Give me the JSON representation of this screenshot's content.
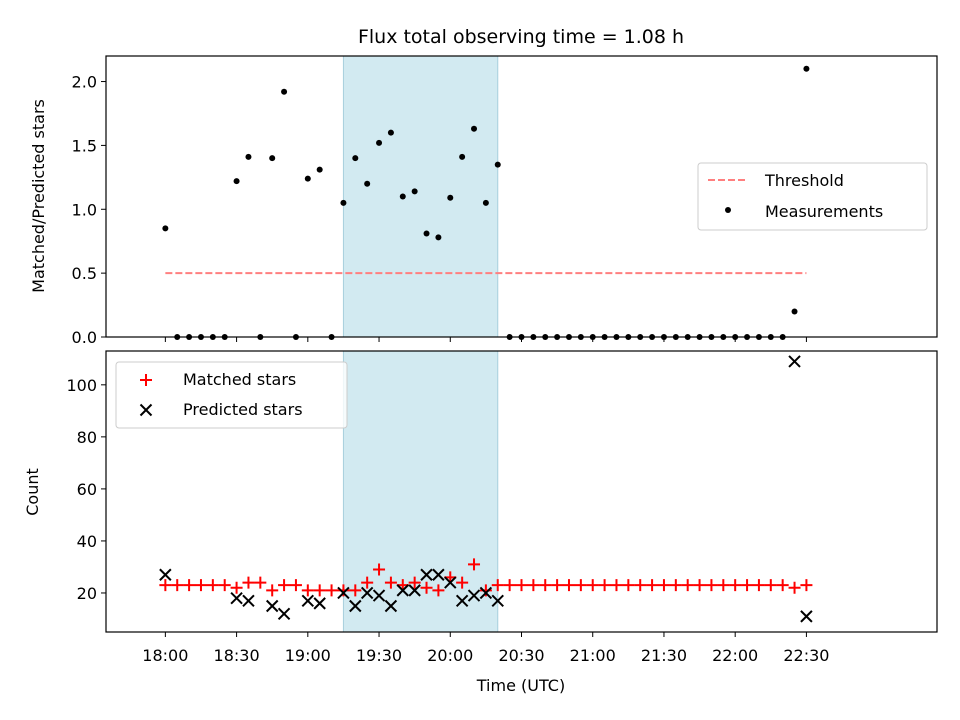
{
  "chart_data": [
    {
      "type": "scatter",
      "title": "Flux total observing time = 1.08 h",
      "xlabel": "",
      "ylabel": "Matched/Predicted stars",
      "xlim_minutes": [
        -25,
        325
      ],
      "ylim": [
        0,
        2.2
      ],
      "yticks": [
        0.0,
        0.5,
        1.0,
        1.5,
        2.0
      ],
      "ytick_labels": [
        "0.0",
        "0.5",
        "1.0",
        "1.5",
        "2.0"
      ],
      "shaded_span": [
        "19:15",
        "20:20"
      ],
      "shaded_color": "#add8e6",
      "legend": {
        "placement": "center-right",
        "entries": [
          "Threshold",
          "Measurements"
        ]
      },
      "series": [
        {
          "name": "Threshold",
          "style": "dashed-line",
          "color": "#ff7f7f",
          "x": [
            "18:00",
            "22:30"
          ],
          "y": [
            0.5,
            0.5
          ]
        },
        {
          "name": "Measurements",
          "style": "dot",
          "color": "#000000",
          "points": [
            [
              "18:00",
              0.85
            ],
            [
              "18:05",
              0.0
            ],
            [
              "18:10",
              0.0
            ],
            [
              "18:15",
              0.0
            ],
            [
              "18:20",
              0.0
            ],
            [
              "18:25",
              0.0
            ],
            [
              "18:30",
              1.22
            ],
            [
              "18:35",
              1.41
            ],
            [
              "18:40",
              0.0
            ],
            [
              "18:45",
              1.4
            ],
            [
              "18:50",
              1.92
            ],
            [
              "18:55",
              0.0
            ],
            [
              "19:00",
              1.24
            ],
            [
              "19:05",
              1.31
            ],
            [
              "19:10",
              0.0
            ],
            [
              "19:15",
              1.05
            ],
            [
              "19:20",
              1.4
            ],
            [
              "19:25",
              1.2
            ],
            [
              "19:30",
              1.52
            ],
            [
              "19:35",
              1.6
            ],
            [
              "19:40",
              1.1
            ],
            [
              "19:45",
              1.14
            ],
            [
              "19:50",
              0.81
            ],
            [
              "19:55",
              0.78
            ],
            [
              "20:00",
              1.09
            ],
            [
              "20:05",
              1.41
            ],
            [
              "20:10",
              1.63
            ],
            [
              "20:15",
              1.05
            ],
            [
              "20:20",
              1.35
            ],
            [
              "20:25",
              0.0
            ],
            [
              "20:30",
              0.0
            ],
            [
              "20:35",
              0.0
            ],
            [
              "20:40",
              0.0
            ],
            [
              "20:45",
              0.0
            ],
            [
              "20:50",
              0.0
            ],
            [
              "20:55",
              0.0
            ],
            [
              "21:00",
              0.0
            ],
            [
              "21:05",
              0.0
            ],
            [
              "21:10",
              0.0
            ],
            [
              "21:15",
              0.0
            ],
            [
              "21:20",
              0.0
            ],
            [
              "21:25",
              0.0
            ],
            [
              "21:30",
              0.0
            ],
            [
              "21:35",
              0.0
            ],
            [
              "21:40",
              0.0
            ],
            [
              "21:45",
              0.0
            ],
            [
              "21:50",
              0.0
            ],
            [
              "21:55",
              0.0
            ],
            [
              "22:00",
              0.0
            ],
            [
              "22:05",
              0.0
            ],
            [
              "22:10",
              0.0
            ],
            [
              "22:15",
              0.0
            ],
            [
              "22:20",
              0.0
            ],
            [
              "22:25",
              0.2
            ],
            [
              "22:30",
              2.1
            ]
          ]
        }
      ]
    },
    {
      "type": "scatter",
      "title": "",
      "xlabel": "Time (UTC)",
      "ylabel": "Count",
      "xlim_minutes": [
        -25,
        325
      ],
      "ylim": [
        5,
        113
      ],
      "xticks": [
        "18:00",
        "18:30",
        "19:00",
        "19:30",
        "20:00",
        "20:30",
        "21:00",
        "21:30",
        "22:00",
        "22:30"
      ],
      "yticks": [
        20,
        40,
        60,
        80,
        100
      ],
      "ytick_labels": [
        "20",
        "40",
        "60",
        "80",
        "100"
      ],
      "shaded_span": [
        "19:15",
        "20:20"
      ],
      "shaded_color": "#add8e6",
      "legend": {
        "placement": "upper-left",
        "entries": [
          "Matched stars",
          "Predicted stars"
        ]
      },
      "series": [
        {
          "name": "Matched stars",
          "marker": "plus",
          "color": "#ff0000",
          "points": [
            [
              "18:00",
              23
            ],
            [
              "18:05",
              23
            ],
            [
              "18:10",
              23
            ],
            [
              "18:15",
              23
            ],
            [
              "18:20",
              23
            ],
            [
              "18:25",
              23
            ],
            [
              "18:30",
              22
            ],
            [
              "18:35",
              24
            ],
            [
              "18:40",
              24
            ],
            [
              "18:45",
              21
            ],
            [
              "18:50",
              23
            ],
            [
              "18:55",
              23
            ],
            [
              "19:00",
              21
            ],
            [
              "19:05",
              21
            ],
            [
              "19:10",
              21
            ],
            [
              "19:15",
              21
            ],
            [
              "19:20",
              21
            ],
            [
              "19:25",
              24
            ],
            [
              "19:30",
              29
            ],
            [
              "19:35",
              24
            ],
            [
              "19:40",
              23
            ],
            [
              "19:45",
              24
            ],
            [
              "19:50",
              22
            ],
            [
              "19:55",
              21
            ],
            [
              "20:00",
              26
            ],
            [
              "20:05",
              24
            ],
            [
              "20:10",
              31
            ],
            [
              "20:15",
              21
            ],
            [
              "20:20",
              23
            ],
            [
              "20:25",
              23
            ],
            [
              "20:30",
              23
            ],
            [
              "20:35",
              23
            ],
            [
              "20:40",
              23
            ],
            [
              "20:45",
              23
            ],
            [
              "20:50",
              23
            ],
            [
              "20:55",
              23
            ],
            [
              "21:00",
              23
            ],
            [
              "21:05",
              23
            ],
            [
              "21:10",
              23
            ],
            [
              "21:15",
              23
            ],
            [
              "21:20",
              23
            ],
            [
              "21:25",
              23
            ],
            [
              "21:30",
              23
            ],
            [
              "21:35",
              23
            ],
            [
              "21:40",
              23
            ],
            [
              "21:45",
              23
            ],
            [
              "21:50",
              23
            ],
            [
              "21:55",
              23
            ],
            [
              "22:00",
              23
            ],
            [
              "22:05",
              23
            ],
            [
              "22:10",
              23
            ],
            [
              "22:15",
              23
            ],
            [
              "22:20",
              23
            ],
            [
              "22:25",
              22
            ],
            [
              "22:30",
              23
            ]
          ]
        },
        {
          "name": "Predicted stars",
          "marker": "x",
          "color": "#000000",
          "points": [
            [
              "18:00",
              27
            ],
            [
              "18:30",
              18
            ],
            [
              "18:35",
              17
            ],
            [
              "18:45",
              15
            ],
            [
              "18:50",
              12
            ],
            [
              "19:00",
              17
            ],
            [
              "19:05",
              16
            ],
            [
              "19:15",
              20
            ],
            [
              "19:20",
              15
            ],
            [
              "19:25",
              20
            ],
            [
              "19:30",
              19
            ],
            [
              "19:35",
              15
            ],
            [
              "19:40",
              21
            ],
            [
              "19:45",
              21
            ],
            [
              "19:50",
              27
            ],
            [
              "19:55",
              27
            ],
            [
              "20:00",
              24
            ],
            [
              "20:05",
              17
            ],
            [
              "20:10",
              19
            ],
            [
              "20:15",
              20
            ],
            [
              "20:20",
              17
            ],
            [
              "22:25",
              109
            ],
            [
              "22:30",
              11
            ]
          ]
        }
      ]
    }
  ]
}
